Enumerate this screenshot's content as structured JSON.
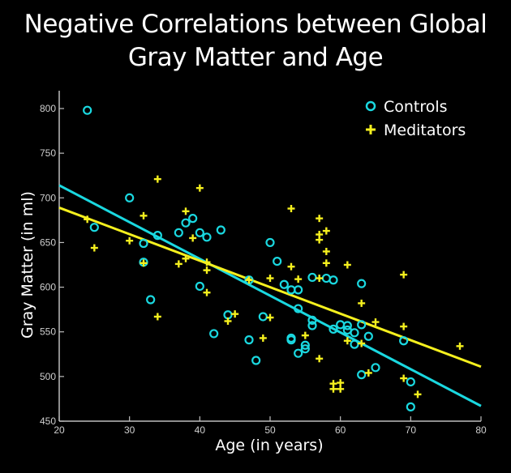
{
  "chart_data": {
    "type": "scatter",
    "title": "Negative Correlations between Global Gray Matter and Age",
    "title_lines": [
      "Negative Correlations between Global",
      "Gray Matter and Age"
    ],
    "xlabel": "Age (in years)",
    "ylabel": "Gray Matter (in ml)",
    "xlim": [
      20,
      80
    ],
    "ylim": [
      450,
      820
    ],
    "xticks": [
      20,
      30,
      40,
      50,
      60,
      70,
      80
    ],
    "yticks": [
      450,
      500,
      550,
      600,
      650,
      700,
      750,
      800
    ],
    "grid": false,
    "legend_position": "top-right",
    "series": [
      {
        "name": "Controls",
        "marker": "circle",
        "color": "#1ad8e0",
        "points": [
          [
            24,
            798
          ],
          [
            25,
            667
          ],
          [
            30,
            700
          ],
          [
            32,
            649
          ],
          [
            32,
            628
          ],
          [
            33,
            586
          ],
          [
            34,
            658
          ],
          [
            37,
            661
          ],
          [
            38,
            672
          ],
          [
            39,
            677
          ],
          [
            40,
            661
          ],
          [
            40,
            601
          ],
          [
            41,
            656
          ],
          [
            42,
            548
          ],
          [
            43,
            664
          ],
          [
            44,
            569
          ],
          [
            47,
            608
          ],
          [
            47,
            541
          ],
          [
            48,
            518
          ],
          [
            49,
            567
          ],
          [
            50,
            650
          ],
          [
            51,
            629
          ],
          [
            52,
            603
          ],
          [
            53,
            597
          ],
          [
            53,
            543
          ],
          [
            53,
            541
          ],
          [
            54,
            597
          ],
          [
            54,
            576
          ],
          [
            54,
            526
          ],
          [
            55,
            535
          ],
          [
            55,
            531
          ],
          [
            56,
            611
          ],
          [
            56,
            563
          ],
          [
            56,
            557
          ],
          [
            58,
            610
          ],
          [
            59,
            608
          ],
          [
            59,
            553
          ],
          [
            60,
            558
          ],
          [
            61,
            557
          ],
          [
            61,
            552
          ],
          [
            62,
            549
          ],
          [
            62,
            536
          ],
          [
            63,
            604
          ],
          [
            63,
            558
          ],
          [
            63,
            502
          ],
          [
            64,
            545
          ],
          [
            65,
            510
          ],
          [
            69,
            540
          ],
          [
            70,
            494
          ],
          [
            70,
            466
          ]
        ],
        "fit_line": [
          [
            20,
            714
          ],
          [
            80,
            467
          ]
        ]
      },
      {
        "name": "Meditators",
        "marker": "plus",
        "color": "#f5f01e",
        "points": [
          [
            24,
            676
          ],
          [
            25,
            644
          ],
          [
            30,
            652
          ],
          [
            32,
            680
          ],
          [
            32,
            627
          ],
          [
            34,
            721
          ],
          [
            34,
            567
          ],
          [
            37,
            626
          ],
          [
            38,
            632
          ],
          [
            38,
            685
          ],
          [
            39,
            655
          ],
          [
            40,
            711
          ],
          [
            41,
            619
          ],
          [
            41,
            594
          ],
          [
            41,
            628
          ],
          [
            44,
            562
          ],
          [
            45,
            570
          ],
          [
            47,
            608
          ],
          [
            49,
            543
          ],
          [
            50,
            610
          ],
          [
            50,
            566
          ],
          [
            53,
            688
          ],
          [
            53,
            623
          ],
          [
            54,
            609
          ],
          [
            55,
            546
          ],
          [
            57,
            677
          ],
          [
            57,
            659
          ],
          [
            57,
            653
          ],
          [
            57,
            610
          ],
          [
            57,
            520
          ],
          [
            58,
            663
          ],
          [
            58,
            640
          ],
          [
            58,
            627
          ],
          [
            59,
            492
          ],
          [
            59,
            486
          ],
          [
            60,
            493
          ],
          [
            60,
            486
          ],
          [
            61,
            625
          ],
          [
            61,
            540
          ],
          [
            63,
            582
          ],
          [
            63,
            537
          ],
          [
            64,
            504
          ],
          [
            65,
            561
          ],
          [
            69,
            614
          ],
          [
            69,
            556
          ],
          [
            69,
            498
          ],
          [
            71,
            480
          ],
          [
            77,
            534
          ]
        ],
        "fit_line": [
          [
            20,
            689
          ],
          [
            80,
            511
          ]
        ]
      }
    ]
  }
}
